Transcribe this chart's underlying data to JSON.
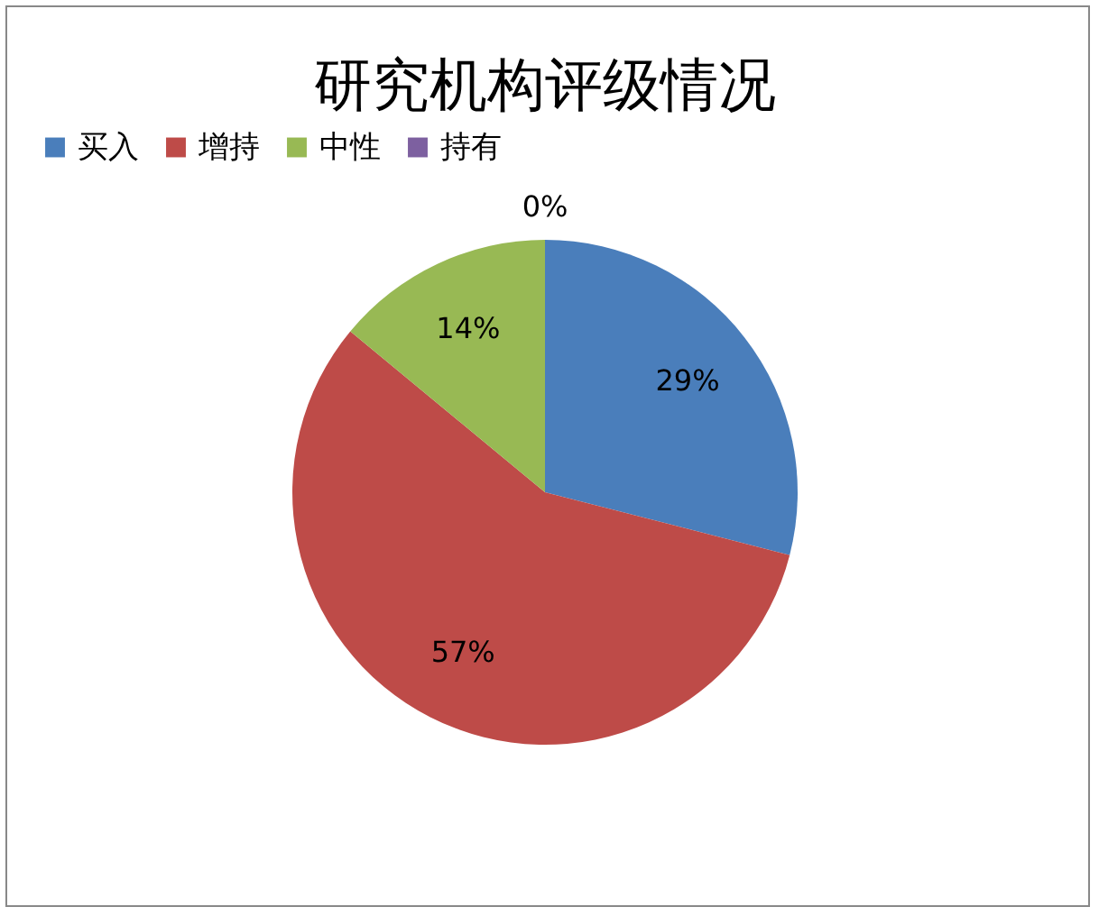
{
  "chart_data": {
    "type": "pie",
    "title": "研究机构评级情况",
    "categories": [
      "买入",
      "增持",
      "中性",
      "持有"
    ],
    "values": [
      29,
      57,
      14,
      0
    ],
    "colors": [
      "#4a7ebb",
      "#be4b48",
      "#98b954",
      "#7d60a0"
    ],
    "value_labels": [
      "29%",
      "57%",
      "14%",
      "0%"
    ],
    "legend": "top"
  }
}
